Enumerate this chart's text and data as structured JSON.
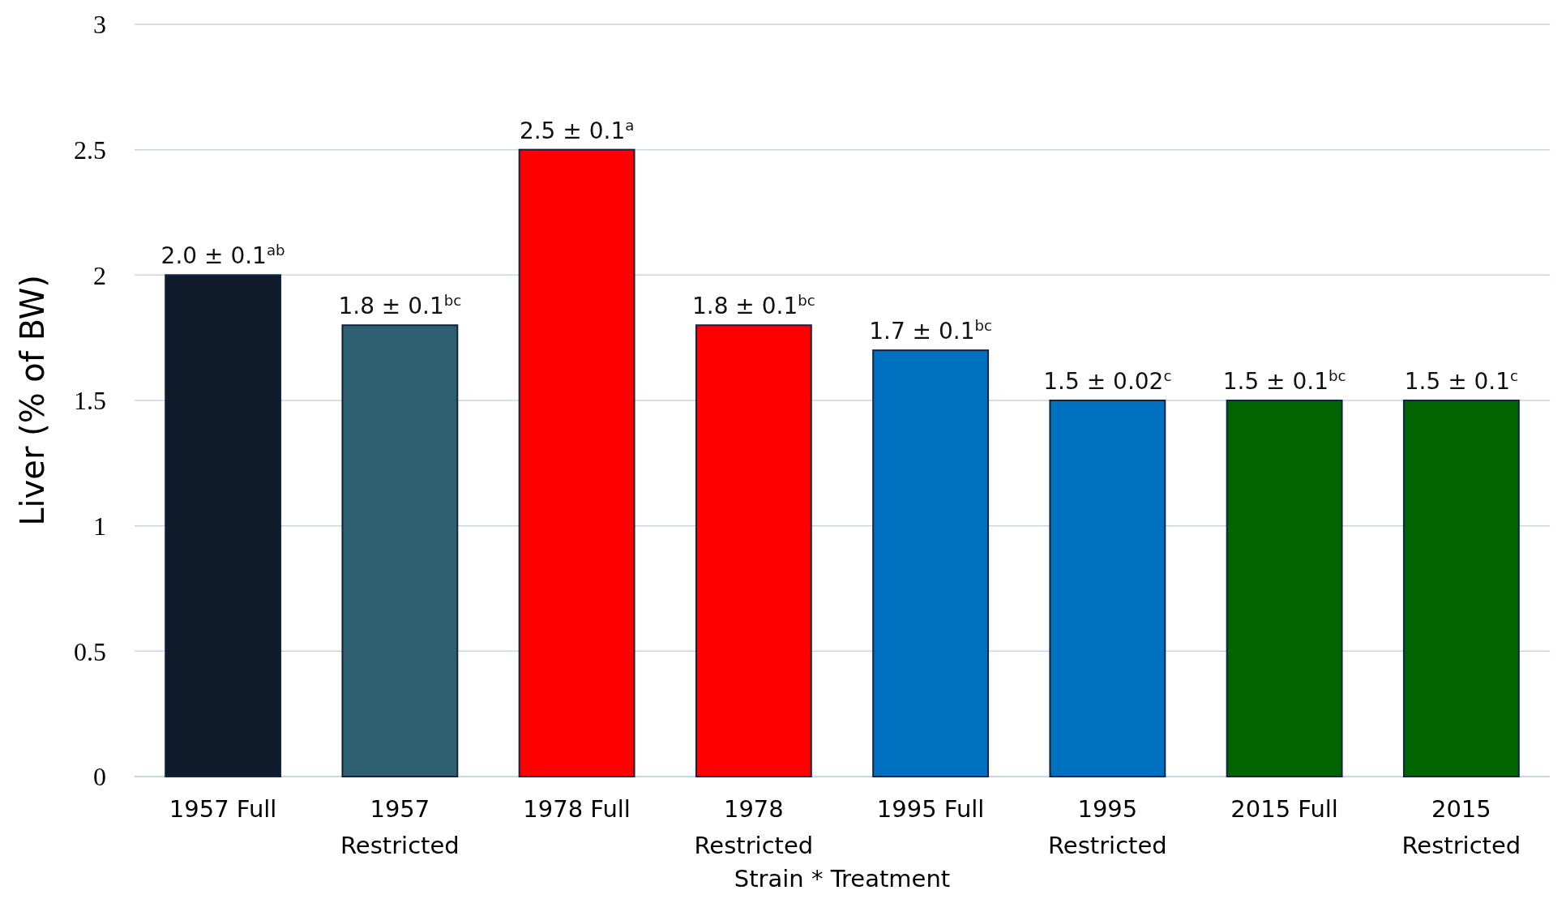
{
  "chart_data": {
    "type": "bar",
    "xlabel": "Strain * Treatment",
    "ylabel": "Liver (% of BW)",
    "categories": [
      "1957 Full",
      "1957 Restricted",
      "1978 Full",
      "1978 Restricted",
      "1995 Full",
      "1995 Restricted",
      "2015 Full",
      "2015 Restricted"
    ],
    "values": [
      2.0,
      1.8,
      2.5,
      1.8,
      1.7,
      1.5,
      1.5,
      1.5
    ],
    "colors": [
      "#0f1b2a",
      "#2e6072",
      "#ff0000",
      "#ff0000",
      "#0070c0",
      "#0070c0",
      "#006400",
      "#006400"
    ],
    "value_labels": [
      "2.0 ± 0.1$^{ab}$",
      "1.8 ± 0.1$^{bc}$",
      "2.5 ± 0.1$^{a}$",
      "1.8 ± 0.1$^{bc}$",
      "1.7 ± 0.1$^{bc}$",
      "1.5 ± 0.02$^{c}$",
      "1.5 ± 0.1$^{bc}$",
      "1.5 ± 0.1$^{c}$"
    ],
    "ylim": [
      0,
      3
    ],
    "yticks": [
      0,
      0.5,
      1,
      1.5,
      2,
      2.5,
      3
    ],
    "grid": "y"
  }
}
